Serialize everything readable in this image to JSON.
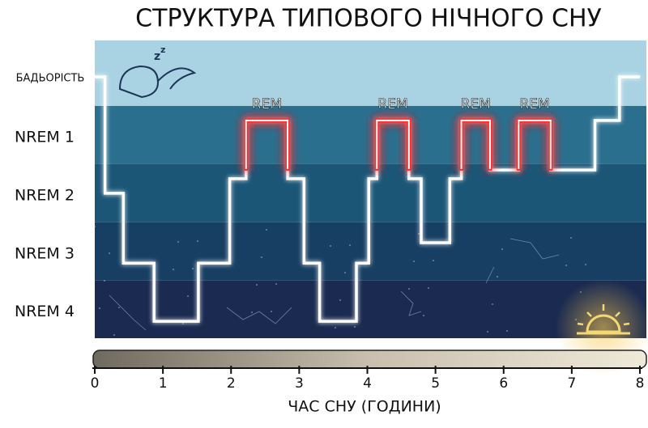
{
  "chart_data": {
    "type": "step-line",
    "title": "СТРУКТУРА ТИПОВОГО НІЧНОГО СНУ",
    "x_label": "ЧАС СНУ (ГОДИНИ)",
    "x": [
      0,
      0.15,
      0.15,
      0.42,
      0.42,
      0.87,
      0.87,
      1.52,
      1.52,
      1.98,
      1.98,
      2.22,
      2.22,
      2.83,
      2.83,
      3.07,
      3.07,
      3.3,
      3.3,
      3.84,
      3.84,
      4.02,
      4.02,
      4.14,
      4.14,
      4.61,
      4.61,
      4.79,
      4.79,
      5.21,
      5.21,
      5.38,
      5.38,
      5.8,
      5.8,
      6.22,
      6.22,
      6.69,
      6.69,
      7.34,
      7.34,
      7.7,
      7.7,
      8
    ],
    "values": [
      0,
      0,
      2,
      2,
      3.2,
      3.2,
      4.2,
      4.2,
      3.2,
      3.2,
      1.75,
      1.75,
      0.75,
      0.75,
      1.75,
      1.75,
      3.2,
      3.2,
      4.2,
      4.2,
      3.2,
      3.2,
      1.75,
      1.75,
      0.75,
      0.75,
      1.75,
      1.75,
      2.85,
      2.85,
      1.75,
      1.75,
      0.75,
      0.75,
      1.6,
      1.6,
      0.75,
      0.75,
      1.6,
      1.6,
      0.75,
      0.75,
      0,
      0
    ],
    "color": "#ffffff",
    "rem_periods": [
      {
        "label": "REM",
        "start": 2.22,
        "end": 2.83,
        "level": 0.75
      },
      {
        "label": "REM",
        "start": 4.14,
        "end": 4.61,
        "level": 0.75
      },
      {
        "label": "REM",
        "start": 5.38,
        "end": 5.8,
        "level": 0.75
      },
      {
        "label": "REM",
        "start": 6.22,
        "end": 6.69,
        "level": 0.75
      }
    ],
    "rem_color": "#ff2a2a",
    "xlim": [
      0,
      8
    ],
    "xticks": [
      0,
      1,
      2,
      3,
      4,
      5,
      6,
      7,
      8
    ],
    "ylim": [
      -0.625,
      4.49
    ],
    "y_reversed": true,
    "yticks": [
      {
        "value": 0,
        "label": "БАДЬОРІСТЬ"
      },
      {
        "value": 1,
        "label": "NREM 1"
      },
      {
        "value": 2,
        "label": "NREM 2"
      },
      {
        "value": 3,
        "label": "NREM 3"
      },
      {
        "value": 4,
        "label": "NREM 4"
      }
    ]
  }
}
